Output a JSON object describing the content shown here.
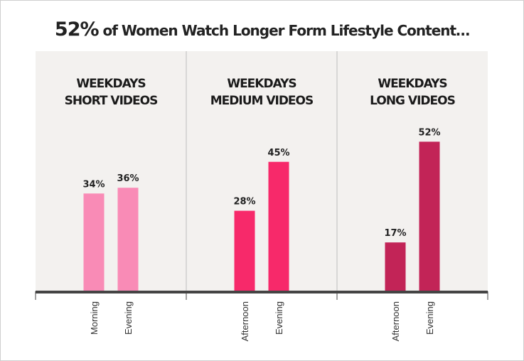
{
  "title_highlight": "52%",
  "title_rest": " of Women Watch Longer Form Lifestyle Content…",
  "colors": {
    "panel_bg": "#f3f1ef",
    "baseline": "#444444",
    "divider": "#bdbdbd",
    "short": "#f98bb6",
    "medium": "#f7296a",
    "long": "#c22457"
  },
  "chart_data": {
    "type": "bar",
    "title": "52% of Women Watch Longer Form Lifestyle Content…",
    "ylim": [
      0,
      60
    ],
    "grid": false,
    "legend": "none",
    "panels": [
      {
        "heading": [
          "WEEKDAYS",
          "SHORT VIDEOS"
        ],
        "color_key": "short",
        "categories": [
          "Morning",
          "Evening"
        ],
        "values": [
          34,
          36
        ],
        "labels": [
          "34%",
          "36%"
        ]
      },
      {
        "heading": [
          "WEEKDAYS",
          "MEDIUM VIDEOS"
        ],
        "color_key": "medium",
        "categories": [
          "Afternoon",
          "Evening"
        ],
        "values": [
          28,
          45
        ],
        "labels": [
          "28%",
          "45%"
        ]
      },
      {
        "heading": [
          "WEEKDAYS",
          "LONG VIDEOS"
        ],
        "color_key": "long",
        "categories": [
          "Afternoon",
          "Evening"
        ],
        "values": [
          17,
          52
        ],
        "labels": [
          "17%",
          "52%"
        ]
      }
    ]
  }
}
